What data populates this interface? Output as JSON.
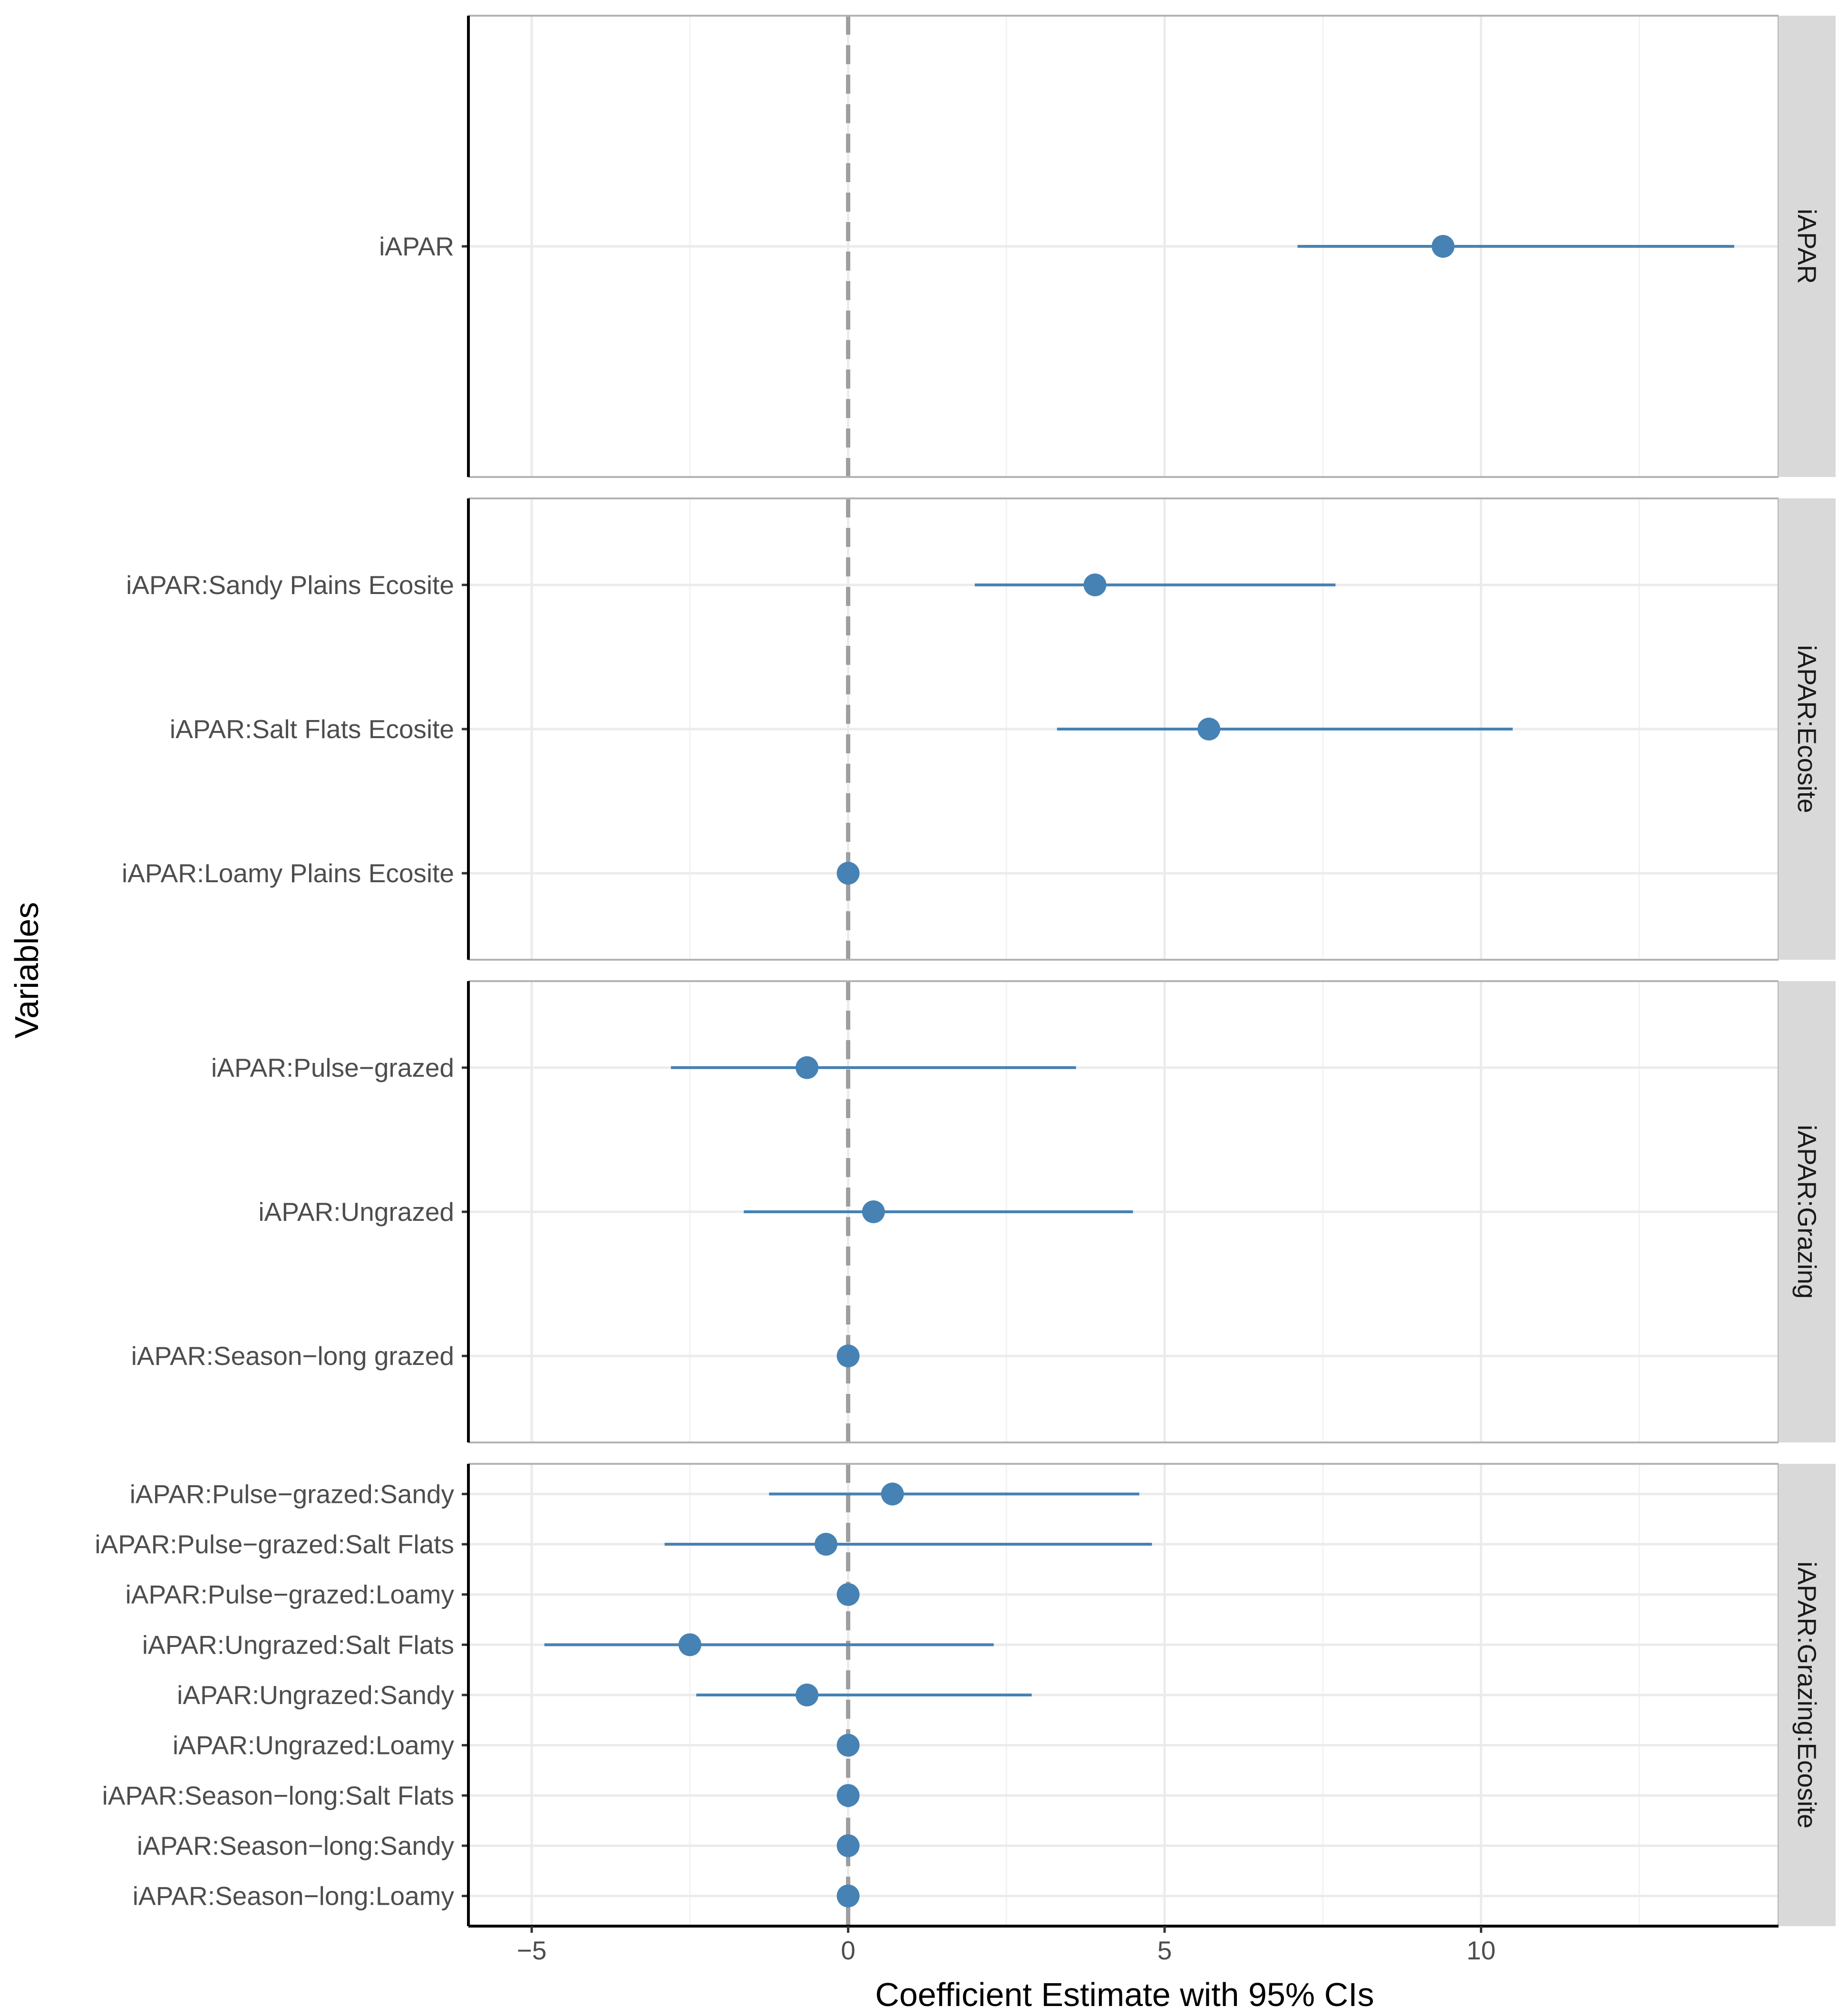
{
  "chart_data": {
    "type": "forest",
    "xlabel": "Coefficient Estimate with 95% CIs",
    "ylabel": "Variables",
    "xlim": [
      -6.0,
      14.7
    ],
    "xticks": [
      -5,
      0,
      5,
      10
    ],
    "xtick_labels": [
      "−5",
      "0",
      "5",
      "10"
    ],
    "reference_line": 0,
    "point_color": "#4682b4",
    "reference_color": "#9e9e9e",
    "panels": [
      {
        "name": "iAPAR",
        "rows": [
          {
            "label": "iAPAR",
            "estimate": 9.4,
            "lower": 7.1,
            "upper": 14.0
          }
        ]
      },
      {
        "name": "iAPAR:Ecosite",
        "rows": [
          {
            "label": "iAPAR:Sandy Plains Ecosite",
            "estimate": 3.9,
            "lower": 2.0,
            "upper": 7.7
          },
          {
            "label": "iAPAR:Salt Flats Ecosite",
            "estimate": 5.7,
            "lower": 3.3,
            "upper": 10.5
          },
          {
            "label": "iAPAR:Loamy Plains Ecosite",
            "estimate": 0.0,
            "lower": 0.0,
            "upper": 0.0
          }
        ]
      },
      {
        "name": "iAPAR:Grazing",
        "rows": [
          {
            "label": "iAPAR:Pulse−grazed",
            "estimate": -0.65,
            "lower": -2.8,
            "upper": 3.6
          },
          {
            "label": "iAPAR:Ungrazed",
            "estimate": 0.4,
            "lower": -1.65,
            "upper": 4.5
          },
          {
            "label": "iAPAR:Season−long grazed",
            "estimate": 0.0,
            "lower": 0.0,
            "upper": 0.0
          }
        ]
      },
      {
        "name": "iAPAR:Grazing:Ecosite",
        "rows": [
          {
            "label": "iAPAR:Pulse−grazed:Sandy",
            "estimate": 0.7,
            "lower": -1.25,
            "upper": 4.6
          },
          {
            "label": "iAPAR:Pulse−grazed:Salt Flats",
            "estimate": -0.35,
            "lower": -2.9,
            "upper": 4.8
          },
          {
            "label": "iAPAR:Pulse−grazed:Loamy",
            "estimate": 0.0,
            "lower": 0.0,
            "upper": 0.0
          },
          {
            "label": "iAPAR:Ungrazed:Salt Flats",
            "estimate": -2.5,
            "lower": -4.8,
            "upper": 2.3
          },
          {
            "label": "iAPAR:Ungrazed:Sandy",
            "estimate": -0.65,
            "lower": -2.4,
            "upper": 2.9
          },
          {
            "label": "iAPAR:Ungrazed:Loamy",
            "estimate": 0.0,
            "lower": 0.0,
            "upper": 0.0
          },
          {
            "label": "iAPAR:Season−long:Salt Flats",
            "estimate": 0.0,
            "lower": 0.0,
            "upper": 0.0
          },
          {
            "label": "iAPAR:Season−long:Sandy",
            "estimate": 0.0,
            "lower": 0.0,
            "upper": 0.0
          },
          {
            "label": "iAPAR:Season−long:Loamy",
            "estimate": 0.0,
            "lower": 0.0,
            "upper": 0.0
          }
        ]
      }
    ]
  }
}
